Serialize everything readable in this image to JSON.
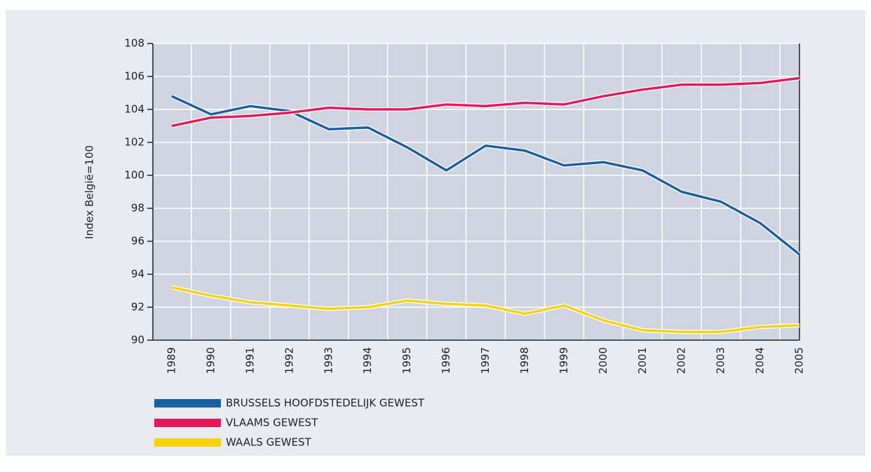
{
  "chart_data": {
    "type": "line",
    "y_label": "Index België=100",
    "categories": [
      "1989",
      "1990",
      "1991",
      "1992",
      "1993",
      "1994",
      "1995",
      "1996",
      "1997",
      "1998",
      "1999",
      "2000",
      "2001",
      "2002",
      "2003",
      "2004",
      "2005"
    ],
    "series": [
      {
        "name": "BRUSSELS HOOFDSTEDELIJK GEWEST",
        "color": "#1b5fa3",
        "values": [
          104.8,
          103.7,
          104.2,
          103.9,
          102.8,
          102.9,
          101.7,
          100.3,
          101.8,
          101.5,
          100.6,
          100.8,
          100.3,
          99.0,
          98.4,
          97.1,
          95.2
        ]
      },
      {
        "name": "VLAAMS GEWEST",
        "color": "#e3195c",
        "values": [
          103.0,
          103.5,
          103.6,
          103.8,
          104.1,
          104.0,
          104.0,
          104.3,
          104.2,
          104.4,
          104.3,
          104.8,
          105.2,
          105.5,
          105.5,
          105.6,
          105.9
        ]
      },
      {
        "name": "WAALS GEWEST",
        "color": "#f6d20c",
        "values": [
          93.2,
          92.7,
          92.3,
          92.1,
          91.9,
          92.0,
          92.4,
          92.2,
          92.1,
          91.6,
          92.1,
          91.2,
          90.6,
          90.5,
          90.5,
          90.8,
          90.9
        ]
      }
    ],
    "ylim": [
      90,
      108
    ],
    "yticks": [
      90,
      92,
      94,
      96,
      98,
      100,
      102,
      104,
      106,
      108
    ],
    "grid": true
  }
}
